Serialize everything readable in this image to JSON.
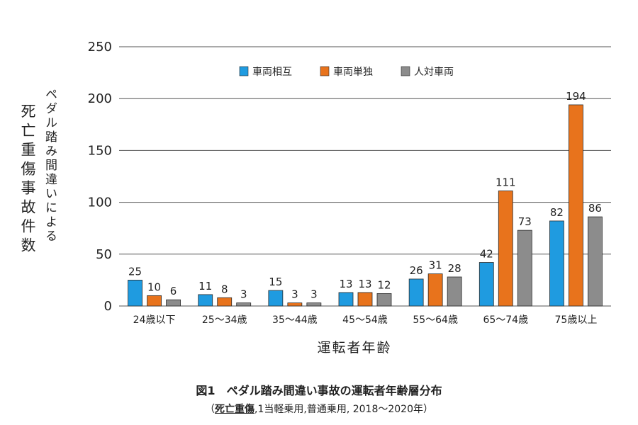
{
  "chart_data": {
    "type": "bar",
    "categories": [
      "24歳以下",
      "25～34歳",
      "35～44歳",
      "45～54歳",
      "55～64歳",
      "65～74歳",
      "75歳以上"
    ],
    "series": [
      {
        "name": "車両相互",
        "color": "#1f9be0",
        "values": [
          25,
          11,
          15,
          13,
          26,
          42,
          82
        ]
      },
      {
        "name": "車両単独",
        "color": "#e8731c",
        "values": [
          10,
          8,
          3,
          13,
          31,
          111,
          194
        ]
      },
      {
        "name": "人対車両",
        "color": "#8c8c8c",
        "values": [
          6,
          3,
          3,
          12,
          28,
          73,
          86
        ]
      }
    ],
    "ylim": [
      0,
      250
    ],
    "yticks": [
      0,
      50,
      100,
      150,
      200,
      250
    ],
    "grid": true,
    "legend_position": "top-center",
    "ylabel_main": "死亡重傷事故件数",
    "ylabel_sub": "ペダル踏み間違いによる",
    "xlabel": "運転者年齢"
  },
  "caption": {
    "figure": "図1",
    "title": "ペダル踏み間違い事故の運転者年齢層分布",
    "open_paren": "（",
    "underlined": "死亡重傷",
    "rest": ",1当軽乗用,普通乗用, 2018～2020年）"
  }
}
